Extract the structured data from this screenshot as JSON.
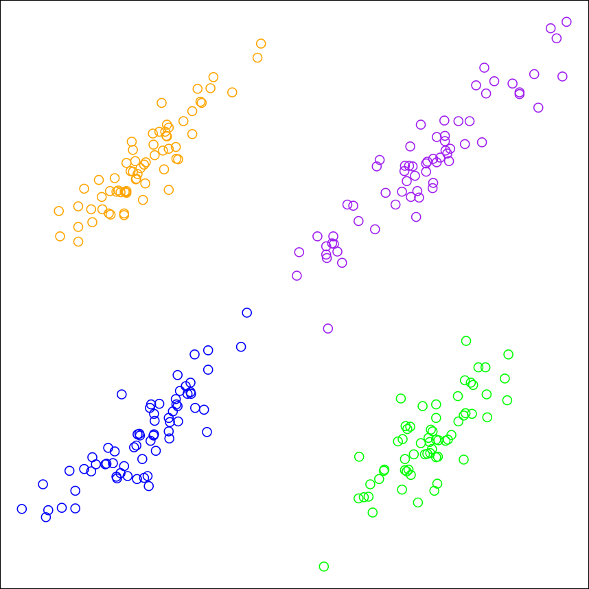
{
  "chart_data": {
    "type": "scatter",
    "xlim": [
      0,
      100
    ],
    "ylim": [
      0,
      100
    ],
    "grid": false,
    "axes_visible": false,
    "series": [
      {
        "color": "#FFA500",
        "points": [
          [
            44.3,
            92.7
          ],
          [
            43.7,
            90.3
          ],
          [
            36.2,
            87.0
          ],
          [
            35.7,
            85.1
          ],
          [
            39.4,
            84.4
          ],
          [
            33.5,
            85.0
          ],
          [
            34.2,
            82.6
          ],
          [
            34.0,
            82.8
          ],
          [
            27.4,
            82.6
          ],
          [
            32.6,
            81.2
          ],
          [
            31.1,
            79.5
          ],
          [
            32.6,
            77.3
          ],
          [
            28.3,
            78.9
          ],
          [
            28.6,
            78.4
          ],
          [
            27.0,
            77.7
          ],
          [
            28.0,
            77.7
          ],
          [
            25.9,
            77.4
          ],
          [
            22.3,
            76.0
          ],
          [
            28.2,
            77.0
          ],
          [
            28.3,
            76.9
          ],
          [
            29.8,
            75.1
          ],
          [
            26.0,
            75.5
          ],
          [
            26.2,
            73.7
          ],
          [
            22.5,
            74.6
          ],
          [
            29.9,
            73.1
          ],
          [
            27.6,
            74.5
          ],
          [
            30.2,
            73.0
          ],
          [
            28.6,
            74.8
          ],
          [
            24.7,
            72.5
          ],
          [
            22.9,
            72.7
          ],
          [
            24.4,
            72.1
          ],
          [
            21.4,
            72.4
          ],
          [
            27.8,
            71.3
          ],
          [
            22.5,
            70.9
          ],
          [
            23.8,
            71.5
          ],
          [
            22.1,
            71.0
          ],
          [
            23.3,
            70.5
          ],
          [
            23.1,
            69.7
          ],
          [
            19.4,
            69.8
          ],
          [
            23.0,
            69.6
          ],
          [
            24.6,
            68.9
          ],
          [
            16.7,
            69.5
          ],
          [
            20.0,
            67.7
          ],
          [
            21.4,
            67.6
          ],
          [
            18.6,
            67.6
          ],
          [
            19.7,
            67.5
          ],
          [
            28.6,
            67.8
          ],
          [
            21.3,
            67.4
          ],
          [
            21.4,
            67.3
          ],
          [
            20.4,
            67.4
          ],
          [
            14.2,
            68.0
          ],
          [
            21.1,
            67.5
          ],
          [
            24.2,
            66.1
          ],
          [
            17.2,
            66.6
          ],
          [
            13.2,
            65.0
          ],
          [
            17.3,
            64.5
          ],
          [
            21.0,
            63.8
          ],
          [
            18.4,
            63.8
          ],
          [
            15.4,
            64.5
          ],
          [
            9.9,
            64.2
          ],
          [
            18.7,
            63.6
          ],
          [
            21.0,
            63.5
          ],
          [
            13.2,
            61.5
          ],
          [
            15.6,
            62.3
          ],
          [
            10.1,
            59.9
          ],
          [
            13.2,
            59.0
          ]
        ]
      },
      {
        "color": "#A020F0",
        "points": [
          [
            96.3,
            96.4
          ],
          [
            93.6,
            95.3
          ],
          [
            94.6,
            93.6
          ],
          [
            82.3,
            88.6
          ],
          [
            95.6,
            87.1
          ],
          [
            90.8,
            87.5
          ],
          [
            84.0,
            86.3
          ],
          [
            87.1,
            85.9
          ],
          [
            80.9,
            85.6
          ],
          [
            88.3,
            84.4
          ],
          [
            82.6,
            84.2
          ],
          [
            88.3,
            84.1
          ],
          [
            91.5,
            81.8
          ],
          [
            75.5,
            79.6
          ],
          [
            77.9,
            79.5
          ],
          [
            79.8,
            79.5
          ],
          [
            71.5,
            78.9
          ],
          [
            75.6,
            77.0
          ],
          [
            74.2,
            76.8
          ],
          [
            81.9,
            75.9
          ],
          [
            79.0,
            75.6
          ],
          [
            75.6,
            76.1
          ],
          [
            69.7,
            75.2
          ],
          [
            76.5,
            74.8
          ],
          [
            75.7,
            74.5
          ],
          [
            76.0,
            74.0
          ],
          [
            74.8,
            73.3
          ],
          [
            73.6,
            73.1
          ],
          [
            64.5,
            72.9
          ],
          [
            76.3,
            72.7
          ],
          [
            72.6,
            72.6
          ],
          [
            74.2,
            72.5
          ],
          [
            68.8,
            71.9
          ],
          [
            70.1,
            71.8
          ],
          [
            72.4,
            72.3
          ],
          [
            69.5,
            71.9
          ],
          [
            64.0,
            71.8
          ],
          [
            68.7,
            71.0
          ],
          [
            72.4,
            70.9
          ],
          [
            70.5,
            70.2
          ],
          [
            69.1,
            69.3
          ],
          [
            73.6,
            69.0
          ],
          [
            73.5,
            68.1
          ],
          [
            68.3,
            67.5
          ],
          [
            65.5,
            67.3
          ],
          [
            70.9,
            67.6
          ],
          [
            69.8,
            66.6
          ],
          [
            59.0,
            65.3
          ],
          [
            71.2,
            66.5
          ],
          [
            60.0,
            65.1
          ],
          [
            67.2,
            65.3
          ],
          [
            70.7,
            63.2
          ],
          [
            60.9,
            62.5
          ],
          [
            63.7,
            61.1
          ],
          [
            56.6,
            59.9
          ],
          [
            53.9,
            59.9
          ],
          [
            56.7,
            58.6
          ],
          [
            57.3,
            57.3
          ],
          [
            56.4,
            58.7
          ],
          [
            55.4,
            58.2
          ],
          [
            50.8,
            57.2
          ],
          [
            55.4,
            56.8
          ],
          [
            55.5,
            56.2
          ],
          [
            55.7,
            44.2
          ],
          [
            58.1,
            55.4
          ],
          [
            50.4,
            53.2
          ]
        ]
      },
      {
        "color": "#0000FF",
        "points": [
          [
            41.9,
            46.9
          ],
          [
            40.9,
            41.1
          ],
          [
            35.3,
            40.5
          ],
          [
            33.0,
            39.8
          ],
          [
            35.3,
            37.2
          ],
          [
            30.1,
            36.3
          ],
          [
            32.3,
            35.0
          ],
          [
            31.5,
            34.4
          ],
          [
            32.3,
            33.4
          ],
          [
            32.4,
            33.1
          ],
          [
            20.6,
            33.0
          ],
          [
            31.8,
            33.1
          ],
          [
            30.5,
            33.6
          ],
          [
            29.8,
            32.2
          ],
          [
            27.0,
            31.4
          ],
          [
            25.6,
            31.3
          ],
          [
            29.9,
            31.3
          ],
          [
            30.1,
            31.0
          ],
          [
            33.1,
            30.7
          ],
          [
            25.4,
            30.7
          ],
          [
            29.3,
            30.1
          ],
          [
            34.6,
            30.4
          ],
          [
            26.1,
            29.7
          ],
          [
            28.6,
            29.0
          ],
          [
            30.2,
            28.4
          ],
          [
            35.1,
            26.6
          ],
          [
            26.2,
            28.5
          ],
          [
            28.8,
            28.3
          ],
          [
            28.6,
            26.7
          ],
          [
            23.6,
            26.3
          ],
          [
            26.1,
            26.2
          ],
          [
            23.7,
            26.0
          ],
          [
            28.7,
            25.5
          ],
          [
            23.1,
            24.3
          ],
          [
            25.5,
            25.1
          ],
          [
            26.0,
            26.0
          ],
          [
            22.7,
            24.0
          ],
          [
            23.3,
            26.2
          ],
          [
            26.4,
            23.4
          ],
          [
            18.3,
            23.9
          ],
          [
            15.6,
            22.3
          ],
          [
            19.1,
            21.3
          ],
          [
            21.0,
            20.8
          ],
          [
            16.2,
            21.1
          ],
          [
            14.2,
            20.3
          ],
          [
            19.4,
            23.3
          ],
          [
            20.4,
            19.6
          ],
          [
            19.7,
            19.0
          ],
          [
            23.2,
            18.6
          ],
          [
            24.4,
            18.8
          ],
          [
            21.6,
            19.1
          ],
          [
            25.0,
            19.1
          ],
          [
            24.1,
            22.0
          ],
          [
            18.0,
            21.2
          ],
          [
            17.8,
            21.1
          ],
          [
            11.7,
            20.0
          ],
          [
            15.4,
            19.9
          ],
          [
            19.8,
            18.7
          ],
          [
            25.2,
            17.4
          ],
          [
            12.7,
            16.6
          ],
          [
            10.4,
            13.7
          ],
          [
            12.7,
            13.6
          ],
          [
            7.2,
            17.7
          ],
          [
            8.1,
            13.3
          ],
          [
            3.6,
            13.5
          ],
          [
            7.7,
            12.1
          ]
        ]
      },
      {
        "color": "#00FF00",
        "points": [
          [
            79.2,
            42.1
          ],
          [
            86.4,
            39.8
          ],
          [
            81.3,
            37.6
          ],
          [
            82.5,
            37.6
          ],
          [
            79.0,
            35.4
          ],
          [
            85.8,
            35.7
          ],
          [
            80.0,
            35.0
          ],
          [
            80.4,
            34.6
          ],
          [
            77.8,
            32.7
          ],
          [
            82.7,
            33.0
          ],
          [
            86.2,
            32.0
          ],
          [
            68.1,
            32.3
          ],
          [
            71.8,
            31.0
          ],
          [
            74.1,
            31.3
          ],
          [
            79.1,
            29.8
          ],
          [
            80.2,
            29.7
          ],
          [
            78.8,
            29.4
          ],
          [
            82.8,
            29.1
          ],
          [
            74.1,
            29.0
          ],
          [
            77.9,
            28.4
          ],
          [
            68.9,
            27.6
          ],
          [
            69.7,
            27.5
          ],
          [
            69.2,
            27.1
          ],
          [
            73.2,
            27.0
          ],
          [
            73.5,
            26.7
          ],
          [
            76.7,
            26.1
          ],
          [
            76.1,
            25.3
          ],
          [
            67.6,
            25.0
          ],
          [
            68.4,
            25.4
          ],
          [
            72.8,
            25.6
          ],
          [
            74.5,
            25.2
          ],
          [
            73.0,
            24.9
          ],
          [
            75.7,
            25.1
          ],
          [
            74.1,
            25.3
          ],
          [
            71.5,
            24.7
          ],
          [
            73.4,
            23.7
          ],
          [
            73.1,
            23.0
          ],
          [
            72.6,
            22.9
          ],
          [
            70.3,
            22.8
          ],
          [
            72.2,
            22.8
          ],
          [
            74.4,
            22.4
          ],
          [
            61.0,
            22.4
          ],
          [
            68.8,
            22.0
          ],
          [
            74.1,
            22.3
          ],
          [
            78.8,
            21.9
          ],
          [
            68.8,
            20.1
          ],
          [
            65.2,
            20.0
          ],
          [
            65.3,
            20.2
          ],
          [
            69.1,
            19.9
          ],
          [
            69.8,
            19.3
          ],
          [
            69.4,
            20.2
          ],
          [
            64.4,
            18.6
          ],
          [
            62.9,
            17.7
          ],
          [
            74.3,
            17.8
          ],
          [
            68.3,
            16.8
          ],
          [
            73.8,
            16.6
          ],
          [
            62.6,
            15.6
          ],
          [
            61.8,
            15.5
          ],
          [
            60.9,
            15.3
          ],
          [
            71.0,
            14.6
          ],
          [
            63.3,
            12.9
          ],
          [
            55.0,
            3.7
          ]
        ]
      }
    ]
  }
}
